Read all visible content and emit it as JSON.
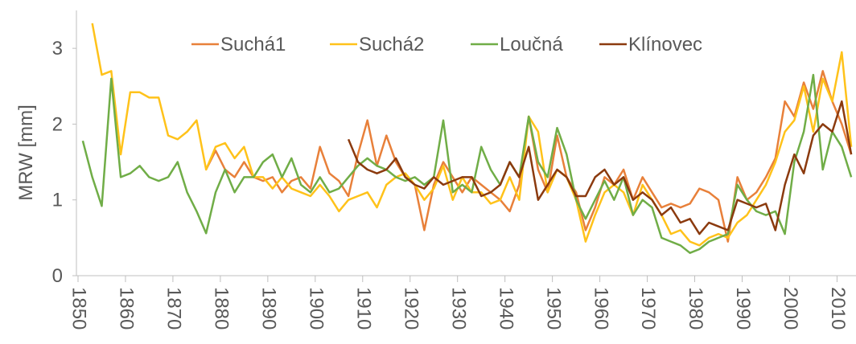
{
  "chart_data": {
    "type": "line",
    "y_label": "MRW [mm]",
    "xlim": [
      1850,
      2014
    ],
    "xticks": [
      1850,
      1860,
      1870,
      1880,
      1890,
      1900,
      1910,
      1920,
      1930,
      1940,
      1950,
      1960,
      1970,
      1980,
      1990,
      2000,
      2010
    ],
    "ylim": [
      0,
      3.5
    ],
    "yticks": [
      0,
      1,
      2,
      3
    ],
    "legend": "top",
    "x": [
      1851,
      1853,
      1855,
      1857,
      1859,
      1861,
      1863,
      1865,
      1867,
      1869,
      1871,
      1873,
      1875,
      1877,
      1879,
      1881,
      1883,
      1885,
      1887,
      1889,
      1891,
      1893,
      1895,
      1897,
      1899,
      1901,
      1903,
      1905,
      1907,
      1909,
      1911,
      1913,
      1915,
      1917,
      1919,
      1921,
      1923,
      1925,
      1927,
      1929,
      1931,
      1933,
      1935,
      1937,
      1939,
      1941,
      1943,
      1945,
      1947,
      1949,
      1951,
      1953,
      1955,
      1957,
      1959,
      1961,
      1963,
      1965,
      1967,
      1969,
      1971,
      1973,
      1975,
      1977,
      1979,
      1981,
      1983,
      1985,
      1987,
      1989,
      1991,
      1993,
      1995,
      1997,
      1999,
      2001,
      2003,
      2005,
      2007,
      2009,
      2011,
      2013
    ],
    "series": [
      {
        "name": "Suchá1",
        "color": "#e8803a",
        "values": [
          null,
          null,
          null,
          null,
          null,
          null,
          null,
          null,
          null,
          null,
          null,
          null,
          null,
          1.4,
          1.65,
          1.4,
          1.3,
          1.5,
          1.3,
          1.25,
          1.3,
          1.1,
          1.25,
          1.3,
          1.15,
          1.7,
          1.35,
          1.25,
          1.05,
          1.6,
          2.05,
          1.45,
          1.85,
          1.5,
          1.3,
          1.2,
          0.6,
          1.2,
          1.5,
          1.3,
          1.1,
          1.3,
          1.2,
          1.1,
          1.0,
          0.85,
          1.2,
          2.1,
          1.4,
          1.1,
          1.85,
          1.3,
          1.1,
          0.6,
          0.9,
          1.3,
          1.2,
          1.4,
          1.0,
          1.3,
          1.1,
          0.9,
          0.95,
          0.9,
          0.95,
          1.15,
          1.1,
          1.0,
          0.45,
          1.3,
          1.0,
          1.1,
          1.3,
          1.55,
          2.3,
          2.1,
          2.55,
          2.2,
          2.7,
          2.3,
          2.0,
          1.6
        ]
      },
      {
        "name": "Suchá2",
        "color": "#ffc21a",
        "values": [
          null,
          3.33,
          2.65,
          2.7,
          1.6,
          2.42,
          2.42,
          2.35,
          2.35,
          1.85,
          1.8,
          1.9,
          2.05,
          1.4,
          1.7,
          1.75,
          1.55,
          1.7,
          1.3,
          1.3,
          1.15,
          1.3,
          1.15,
          1.1,
          1.05,
          1.2,
          1.05,
          0.85,
          1.0,
          1.05,
          1.1,
          0.9,
          1.2,
          1.3,
          1.35,
          1.2,
          1.0,
          1.15,
          1.45,
          1.0,
          1.3,
          1.1,
          1.1,
          0.95,
          1.0,
          1.3,
          1.0,
          2.1,
          1.9,
          1.1,
          1.4,
          1.3,
          1.0,
          0.45,
          0.8,
          1.1,
          1.2,
          1.1,
          0.8,
          1.2,
          1.0,
          0.8,
          0.55,
          0.6,
          0.45,
          0.4,
          0.5,
          0.55,
          0.5,
          0.7,
          0.8,
          1.0,
          1.2,
          1.5,
          1.9,
          2.05,
          2.5,
          1.9,
          2.6,
          2.3,
          2.95,
          1.7
        ]
      },
      {
        "name": "Loučná",
        "color": "#70ad47",
        "values": [
          1.78,
          1.3,
          0.92,
          2.6,
          1.3,
          1.35,
          1.45,
          1.3,
          1.25,
          1.3,
          1.5,
          1.1,
          0.85,
          0.56,
          1.1,
          1.4,
          1.1,
          1.3,
          1.3,
          1.5,
          1.6,
          1.3,
          1.55,
          1.2,
          1.1,
          1.3,
          1.1,
          1.15,
          1.3,
          1.45,
          1.55,
          1.45,
          1.4,
          1.3,
          1.25,
          1.3,
          1.2,
          1.3,
          2.05,
          1.1,
          1.2,
          1.1,
          1.7,
          1.4,
          1.2,
          1.5,
          1.3,
          2.1,
          1.5,
          1.3,
          1.95,
          1.6,
          1.0,
          0.75,
          1.0,
          1.25,
          1.0,
          1.3,
          0.8,
          1.0,
          0.9,
          0.5,
          0.45,
          0.4,
          0.3,
          0.35,
          0.45,
          0.5,
          0.55,
          1.2,
          1.0,
          0.85,
          0.8,
          0.85,
          0.55,
          1.5,
          1.9,
          2.65,
          1.4,
          1.9,
          1.7,
          1.3
        ]
      },
      {
        "name": "Klínovec",
        "color": "#8b3a0e",
        "values": [
          null,
          null,
          null,
          null,
          null,
          null,
          null,
          null,
          null,
          null,
          null,
          null,
          null,
          null,
          null,
          null,
          null,
          null,
          null,
          null,
          null,
          null,
          null,
          null,
          null,
          null,
          null,
          null,
          1.8,
          1.5,
          1.4,
          1.35,
          1.4,
          1.55,
          1.3,
          1.2,
          1.15,
          1.3,
          1.2,
          1.25,
          1.3,
          1.3,
          1.05,
          1.1,
          1.2,
          1.5,
          1.3,
          1.7,
          1.0,
          1.2,
          1.4,
          1.3,
          1.05,
          1.05,
          1.3,
          1.4,
          1.2,
          1.3,
          1.0,
          1.1,
          1.0,
          0.8,
          0.9,
          0.7,
          0.75,
          0.55,
          0.7,
          0.65,
          0.6,
          1.0,
          0.95,
          0.9,
          0.95,
          0.6,
          1.2,
          1.6,
          1.35,
          1.85,
          2.0,
          1.9,
          2.3,
          1.6
        ]
      }
    ]
  }
}
